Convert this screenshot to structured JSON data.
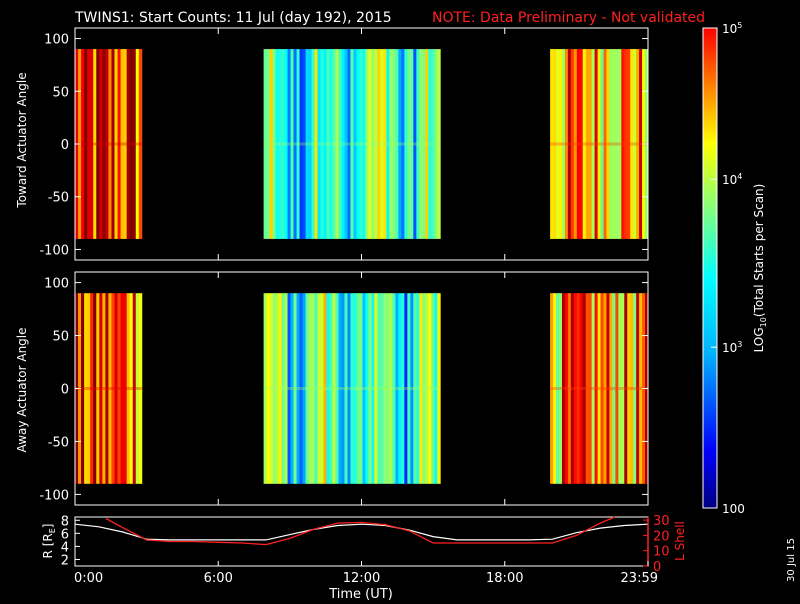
{
  "title": {
    "main": "TWINS1: Start Counts: 11 Jul (day 192), 2015",
    "note": "NOTE: Data Preliminary - Not validated"
  },
  "date_stamp": "30 Jul 15",
  "colors": {
    "background": "#000000",
    "axis": "#ffffff",
    "note": "#ff2020",
    "l_shell": "#ff2020",
    "r_line": "#ffffff"
  },
  "chart_data": [
    {
      "type": "heatmap",
      "ylabel": "Toward Actuator Angle",
      "ylim": [
        -110,
        110
      ],
      "yticks": [
        "100",
        "50",
        "0",
        "-50",
        "-100"
      ],
      "ytick_values": [
        100,
        50,
        0,
        -50,
        -100
      ],
      "xlim": [
        0,
        24
      ],
      "angle_range": [
        -90,
        90
      ],
      "data_segments": [
        {
          "start": 0.0,
          "end": 2.8,
          "level": 0.82
        },
        {
          "start": 7.9,
          "end": 15.3,
          "level": 0.42
        },
        {
          "start": 19.9,
          "end": 24.0,
          "level": 0.72
        }
      ]
    },
    {
      "type": "heatmap",
      "ylabel": "Away Actuator Angle",
      "ylim": [
        -110,
        110
      ],
      "yticks": [
        "100",
        "50",
        "0",
        "-50",
        "-100"
      ],
      "ytick_values": [
        100,
        50,
        0,
        -50,
        -100
      ],
      "xlim": [
        0,
        24
      ],
      "angle_range": [
        -90,
        90
      ],
      "data_segments": [
        {
          "start": 0.0,
          "end": 2.8,
          "level": 0.8
        },
        {
          "start": 7.9,
          "end": 15.3,
          "level": 0.44
        },
        {
          "start": 19.9,
          "end": 24.0,
          "level": 0.72
        }
      ]
    },
    {
      "type": "line",
      "ylabel": "R [R",
      "ylabel_sub": "E",
      "ylabel_end": "]",
      "ylim": [
        1,
        8.5
      ],
      "yticks": [
        "8",
        "6",
        "4",
        "2"
      ],
      "ytick_values": [
        8,
        6,
        4,
        2
      ],
      "y2label": "L Shell",
      "y2lim": [
        0,
        32
      ],
      "y2ticks": [
        "30",
        "20",
        "10",
        "0"
      ],
      "y2tick_values": [
        30,
        20,
        10,
        0
      ],
      "xlim": [
        0,
        24
      ],
      "xlabel": "Time (UT)",
      "xticks": [
        "0:00",
        "6:00",
        "12:00",
        "18:00",
        "23:59"
      ],
      "xtick_values": [
        0,
        6,
        12,
        18,
        24
      ],
      "series": [
        {
          "x": [
            0,
            1,
            2,
            3,
            4,
            5,
            6,
            7,
            8,
            9,
            10,
            11,
            12,
            13,
            14,
            15,
            16,
            17,
            18,
            19,
            20,
            21,
            22,
            23,
            24
          ],
          "values": [
            7.4,
            7.0,
            6.2,
            5.1,
            5.0,
            5.0,
            5.0,
            5.0,
            5.0,
            5.8,
            6.6,
            7.2,
            7.4,
            7.2,
            6.5,
            5.5,
            5.0,
            5.0,
            5.0,
            5.0,
            5.1,
            6.1,
            6.8,
            7.2,
            7.4
          ]
        },
        {
          "axis": "right",
          "x": [
            1.3,
            2,
            3,
            4,
            5,
            6,
            7,
            8,
            9,
            10,
            11,
            12,
            13,
            14,
            15,
            16,
            17,
            18,
            19,
            20,
            21,
            22,
            22.6
          ],
          "values": [
            31,
            25,
            17,
            16,
            16,
            15.5,
            15,
            14,
            18,
            24,
            28,
            28.5,
            27,
            23,
            15,
            15,
            15,
            15,
            15,
            15,
            20,
            28,
            32
          ]
        }
      ]
    },
    {
      "type": "heatmap",
      "colorbar": true,
      "label": "LOG",
      "label_sub": "10",
      "label_end": "(Total Starts per Scan)",
      "ticks": [
        {
          "base": "10",
          "exp": "5",
          "pos": 0.0
        },
        {
          "base": "10",
          "exp": "4",
          "pos": 0.315
        },
        {
          "base": "10",
          "exp": "3",
          "pos": 0.665
        },
        {
          "base": "100",
          "exp": "",
          "pos": 1.0
        }
      ]
    }
  ]
}
